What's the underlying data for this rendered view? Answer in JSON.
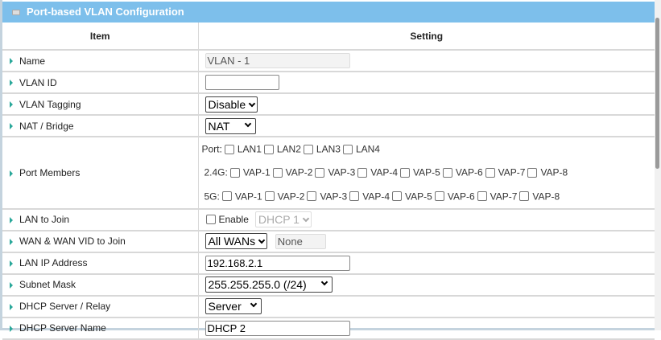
{
  "title": "Port-based VLAN Configuration",
  "columns": {
    "item": "Item",
    "setting": "Setting"
  },
  "rows": {
    "name": {
      "label": "Name",
      "value": "VLAN - 1"
    },
    "vlan_id": {
      "label": "VLAN ID",
      "value": ""
    },
    "tagging": {
      "label": "VLAN Tagging",
      "value": "Disable"
    },
    "nat": {
      "label": "NAT / Bridge",
      "value": "NAT"
    },
    "port_members": {
      "label": "Port Members",
      "port_label": "Port:",
      "ports": [
        "LAN1",
        "LAN2",
        "LAN3",
        "LAN4"
      ],
      "g24_label": "2.4G:",
      "g24": [
        "VAP-1",
        "VAP-2",
        "VAP-3",
        "VAP-4",
        "VAP-5",
        "VAP-6",
        "VAP-7",
        "VAP-8"
      ],
      "g5_label": "5G:",
      "g5": [
        "VAP-1",
        "VAP-2",
        "VAP-3",
        "VAP-4",
        "VAP-5",
        "VAP-6",
        "VAP-7",
        "VAP-8"
      ]
    },
    "lan_join": {
      "label": "LAN to Join",
      "enable": "Enable",
      "dhcp": "DHCP 1"
    },
    "wan_join": {
      "label": "WAN & WAN VID to Join",
      "value": "All WANs",
      "vid": "None"
    },
    "lan_ip": {
      "label": "LAN IP Address",
      "value": "192.168.2.1"
    },
    "subnet": {
      "label": "Subnet Mask",
      "value": "255.255.255.0 (/24)"
    },
    "dhcp_server": {
      "label": "DHCP Server / Relay",
      "value": "Server"
    },
    "dhcp_name": {
      "label": "DHCP Server Name",
      "value": "DHCP 2"
    }
  },
  "colors": {
    "header": "#7dbfeb",
    "arrow": "#2aa89a"
  }
}
